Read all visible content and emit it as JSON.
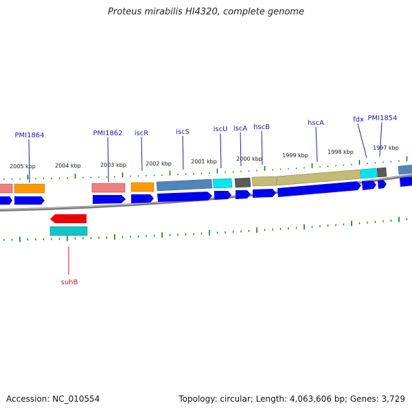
{
  "title": "Proteus mirabilis HI4320, complete genome",
  "accession_label": "Accession: NC_010554",
  "summary_label": "Topology: circular; Length: 4,063,606 bp; Genes: 3,729",
  "kbp_labels": [
    "2005 kbp",
    "2004 kbp",
    "2003 kbp",
    "2002 kbp",
    "2001 kbp",
    "2000 kbp",
    "1999 kbp",
    "1998 kbp",
    "1997 kbp"
  ],
  "gene_labels_top": [
    "PMI1864",
    "PMI1862",
    "iscR",
    "iscS",
    "iscU",
    "iscA",
    "hscB",
    "hscA",
    "fdx",
    "PMI1854"
  ],
  "gene_labels_bottom": [
    "suhB"
  ],
  "colors": {
    "gene_label_blue": "#1a1aaa",
    "gene_label_red": "#cc1111",
    "cds_blue": "#0000ee",
    "salmon": "#f08080",
    "orange": "#ff9900",
    "steelblue": "#4f86b6",
    "cyan": "#00e5f0",
    "darkgray": "#5a5a5a",
    "olive": "#c4bb77",
    "red": "#ee0000",
    "teal": "#10c4c8",
    "tick_green": "#117711",
    "backbone": "#808080"
  }
}
